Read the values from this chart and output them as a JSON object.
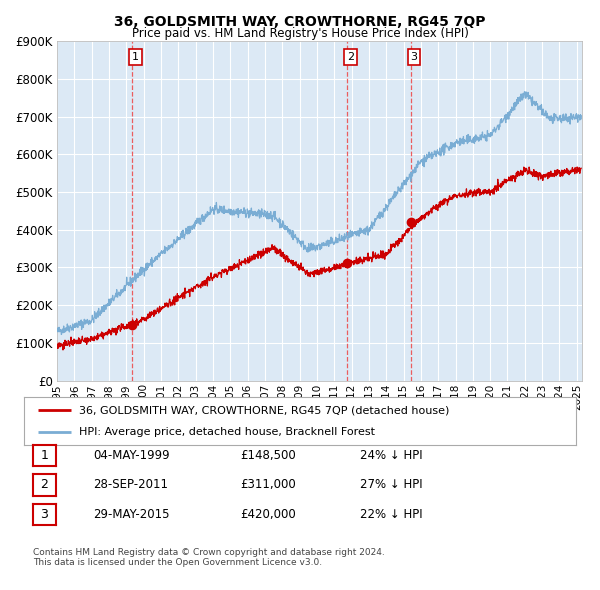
{
  "title": "36, GOLDSMITH WAY, CROWTHORNE, RG45 7QP",
  "subtitle": "Price paid vs. HM Land Registry's House Price Index (HPI)",
  "bg_color": "#dce9f5",
  "plot_bg_color": "#dce9f5",
  "hpi_color": "#7aadd4",
  "price_color": "#cc0000",
  "marker_color": "#cc0000",
  "grid_color": "#ffffff",
  "vline_color": "#ee4444",
  "sales": [
    {
      "date_num": 1999.34,
      "price": 148500,
      "label": "1"
    },
    {
      "date_num": 2011.74,
      "price": 311000,
      "label": "2"
    },
    {
      "date_num": 2015.41,
      "price": 420000,
      "label": "3"
    }
  ],
  "legend_entry1": "36, GOLDSMITH WAY, CROWTHORNE, RG45 7QP (detached house)",
  "legend_entry2": "HPI: Average price, detached house, Bracknell Forest",
  "table_rows": [
    {
      "num": "1",
      "date": "04-MAY-1999",
      "price": "£148,500",
      "hpi": "24% ↓ HPI"
    },
    {
      "num": "2",
      "date": "28-SEP-2011",
      "price": "£311,000",
      "hpi": "27% ↓ HPI"
    },
    {
      "num": "3",
      "date": "29-MAY-2015",
      "price": "£420,000",
      "hpi": "22% ↓ HPI"
    }
  ],
  "footer1": "Contains HM Land Registry data © Crown copyright and database right 2024.",
  "footer2": "This data is licensed under the Open Government Licence v3.0.",
  "ylim": [
    0,
    900000
  ],
  "yticks": [
    0,
    100000,
    200000,
    300000,
    400000,
    500000,
    600000,
    700000,
    800000,
    900000
  ],
  "xlim_start": 1995.0,
  "xlim_end": 2025.3
}
